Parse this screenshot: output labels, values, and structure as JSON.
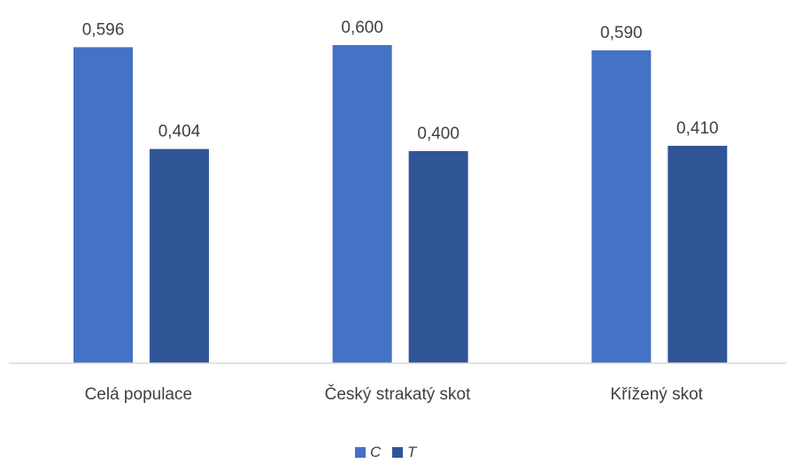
{
  "chart_data": {
    "type": "bar",
    "categories": [
      "Celá populace",
      "Český strakatý skot",
      "Křížený skot"
    ],
    "series": [
      {
        "name": "C",
        "values": [
          0.596,
          0.6,
          0.59
        ],
        "labels": [
          "0,596",
          "0,600",
          "0,590"
        ],
        "color": "#4472C4"
      },
      {
        "name": "T",
        "values": [
          0.404,
          0.4,
          0.41
        ],
        "labels": [
          "0,404",
          "0,400",
          "0,410"
        ],
        "color": "#2F5597"
      }
    ],
    "title": "",
    "xlabel": "",
    "ylabel": "",
    "ylim": [
      0,
      0.6
    ],
    "grid": false,
    "legend": "bottom-center"
  }
}
